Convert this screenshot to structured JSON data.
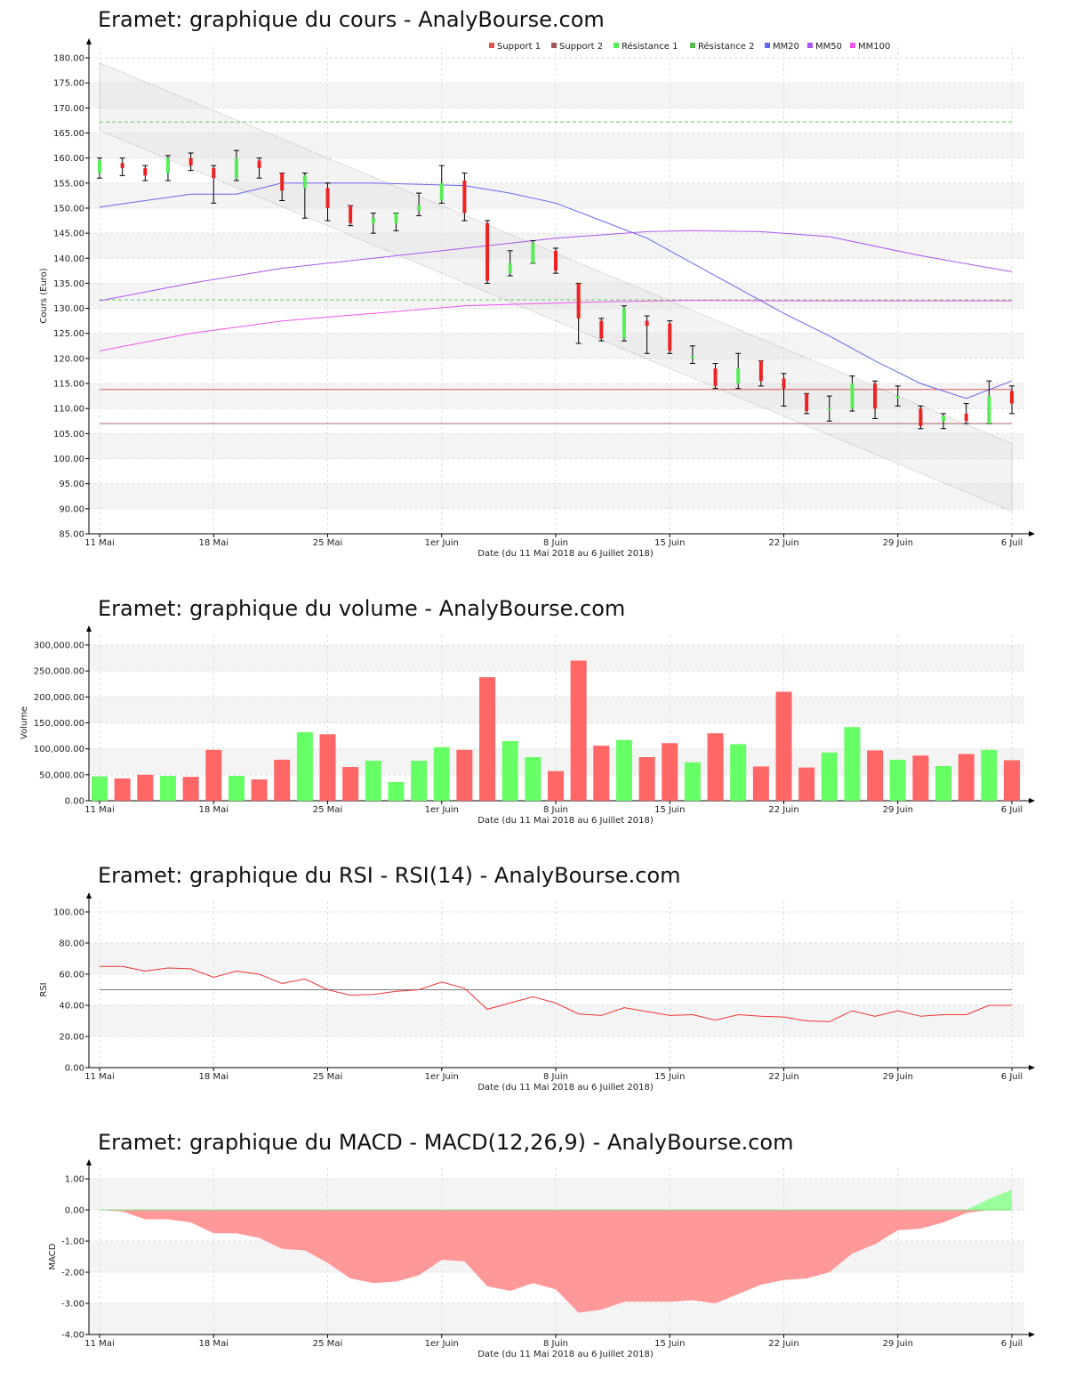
{
  "titles": {
    "price": "Eramet: graphique du cours - AnalyBourse.com",
    "volume": "Eramet: graphique du volume - AnalyBourse.com",
    "rsi": "Eramet: graphique du RSI - RSI(14) - AnalyBourse.com",
    "macd": "Eramet: graphique du MACD - MACD(12,26,9) - AnalyBourse.com"
  },
  "x_axis_label": "Date (du 11 Mai 2018 au 6 Juillet 2018)",
  "x_ticks": [
    "11 Mai",
    "18 Mai",
    "25 Mai",
    "1er Juin",
    "8 Juin",
    "15 Juin",
    "22 Juin",
    "29 Juin",
    "6 Juil"
  ],
  "x_tick_index": [
    0,
    5,
    10,
    15,
    20,
    25,
    30,
    35,
    40
  ],
  "colors": {
    "up": "#55ee55",
    "down": "#ee2222",
    "volume_up": "#66ff66",
    "volume_down": "#ff6666",
    "support": "#dd5555",
    "resistance": "#66cc66",
    "mm20": "#6666ee",
    "mm50": "#aa55ee",
    "mm100": "#ee55ee",
    "macd_neg": "#ff9999",
    "macd_pos": "#99ff99"
  },
  "chart_data": [
    {
      "type": "candlestick",
      "title": "Eramet: graphique du cours - AnalyBourse.com",
      "ylabel": "Cours (Euro)",
      "xlabel": "Date (du 11 Mai 2018 au 6 Juillet 2018)",
      "ylim": [
        85,
        180
      ],
      "y_ticks": [
        "85.00",
        "90.00",
        "95.00",
        "100.00",
        "105.00",
        "110.00",
        "115.00",
        "120.00",
        "125.00",
        "130.00",
        "135.00",
        "140.00",
        "145.00",
        "150.00",
        "155.00",
        "160.00",
        "165.00",
        "170.00",
        "175.00",
        "180.00"
      ],
      "legend": [
        "Support 1",
        "Support 2",
        "Résistance 1",
        "Résistance 2",
        "MM20",
        "MM50",
        "MM100"
      ],
      "legend_position": "top-right",
      "candles": [
        {
          "o": 157,
          "h": 160,
          "l": 156,
          "c": 159.5
        },
        {
          "o": 159,
          "h": 160,
          "l": 156.5,
          "c": 158
        },
        {
          "o": 158,
          "h": 158.5,
          "l": 155.5,
          "c": 156.5
        },
        {
          "o": 157,
          "h": 160.5,
          "l": 155.5,
          "c": 160
        },
        {
          "o": 160,
          "h": 161,
          "l": 157.5,
          "c": 158.5
        },
        {
          "o": 158,
          "h": 158.5,
          "l": 151,
          "c": 156
        },
        {
          "o": 156,
          "h": 161.5,
          "l": 155.5,
          "c": 160
        },
        {
          "o": 159.5,
          "h": 160,
          "l": 156,
          "c": 158
        },
        {
          "o": 157,
          "h": 157,
          "l": 151.5,
          "c": 153.5
        },
        {
          "o": 154,
          "h": 157,
          "l": 148,
          "c": 156.5
        },
        {
          "o": 154,
          "h": 155,
          "l": 147.5,
          "c": 150
        },
        {
          "o": 150.5,
          "h": 150.5,
          "l": 146.5,
          "c": 147
        },
        {
          "o": 147,
          "h": 149,
          "l": 145,
          "c": 148
        },
        {
          "o": 147,
          "h": 149,
          "l": 145.5,
          "c": 149
        },
        {
          "o": 149.5,
          "h": 153,
          "l": 148.5,
          "c": 150.5
        },
        {
          "o": 151.5,
          "h": 158.5,
          "l": 151,
          "c": 155
        },
        {
          "o": 155.5,
          "h": 157,
          "l": 147.5,
          "c": 149
        },
        {
          "o": 147,
          "h": 147.5,
          "l": 135,
          "c": 135.5
        },
        {
          "o": 137,
          "h": 141.5,
          "l": 136.5,
          "c": 139
        },
        {
          "o": 139,
          "h": 143.5,
          "l": 139,
          "c": 143
        },
        {
          "o": 141.5,
          "h": 142,
          "l": 137,
          "c": 137.5
        },
        {
          "o": 135,
          "h": 135,
          "l": 123,
          "c": 128
        },
        {
          "o": 127.5,
          "h": 128,
          "l": 123.5,
          "c": 124
        },
        {
          "o": 124,
          "h": 130.5,
          "l": 123.5,
          "c": 130
        },
        {
          "o": 127.5,
          "h": 128.5,
          "l": 121,
          "c": 126.5
        },
        {
          "o": 127,
          "h": 127.5,
          "l": 121,
          "c": 121.5
        },
        {
          "o": 120,
          "h": 122.5,
          "l": 119,
          "c": 120.5
        },
        {
          "o": 118,
          "h": 119,
          "l": 114,
          "c": 114.5
        },
        {
          "o": 115,
          "h": 121,
          "l": 114,
          "c": 118
        },
        {
          "o": 119.5,
          "h": 119.5,
          "l": 114.5,
          "c": 115.5
        },
        {
          "o": 116,
          "h": 117,
          "l": 110.5,
          "c": 114
        },
        {
          "o": 113,
          "h": 113,
          "l": 109,
          "c": 109.5
        },
        {
          "o": 110,
          "h": 112.5,
          "l": 107.5,
          "c": 110
        },
        {
          "o": 110,
          "h": 116.5,
          "l": 109.5,
          "c": 115
        },
        {
          "o": 115,
          "h": 115.5,
          "l": 108,
          "c": 110
        },
        {
          "o": 112,
          "h": 114.5,
          "l": 110.5,
          "c": 112.5
        },
        {
          "o": 110,
          "h": 110.5,
          "l": 106,
          "c": 106.5
        },
        {
          "o": 107.5,
          "h": 109,
          "l": 106,
          "c": 108.5
        },
        {
          "o": 109,
          "h": 111,
          "l": 107,
          "c": 107.5
        },
        {
          "o": 107,
          "h": 115.5,
          "l": 107,
          "c": 112.5
        },
        {
          "o": 113.5,
          "h": 114.5,
          "l": 109,
          "c": 111
        }
      ],
      "support1": 113.8,
      "support2": 107,
      "resistance1": 131.7,
      "resistance2": 167.2,
      "series": [
        {
          "name": "MM20",
          "points": [
            [
              0,
              150.2
            ],
            [
              4,
              152.8
            ],
            [
              6,
              152.8
            ],
            [
              8,
              155
            ],
            [
              12,
              155
            ],
            [
              16,
              154.5
            ],
            [
              18,
              153
            ],
            [
              20,
              151
            ],
            [
              22,
              147.5
            ],
            [
              24,
              144
            ],
            [
              26,
              139
            ],
            [
              28,
              134
            ],
            [
              30,
              129
            ],
            [
              32,
              124.5
            ],
            [
              34,
              119.5
            ],
            [
              36,
              115
            ],
            [
              38,
              112
            ],
            [
              40,
              115.5
            ]
          ]
        },
        {
          "name": "MM50",
          "points": [
            [
              0,
              131.5
            ],
            [
              4,
              135
            ],
            [
              8,
              138
            ],
            [
              12,
              140
            ],
            [
              16,
              142
            ],
            [
              20,
              144
            ],
            [
              24,
              145.3
            ],
            [
              26,
              145.5
            ],
            [
              29,
              145.3
            ],
            [
              32,
              144.3
            ],
            [
              36,
              140.5
            ],
            [
              40,
              137.3
            ]
          ]
        },
        {
          "name": "MM100",
          "points": [
            [
              0,
              121.5
            ],
            [
              4,
              125
            ],
            [
              8,
              127.5
            ],
            [
              12,
              129
            ],
            [
              16,
              130.5
            ],
            [
              18,
              130.8
            ],
            [
              22,
              131.3
            ],
            [
              26,
              131.6
            ],
            [
              30,
              131.5
            ],
            [
              40,
              131.5
            ]
          ]
        }
      ],
      "channel": {
        "upper": [
          [
            0,
            179
          ],
          [
            40,
            103
          ]
        ],
        "lower": [
          [
            0,
            165.5
          ],
          [
            40,
            89.5
          ]
        ]
      }
    },
    {
      "type": "bar",
      "title": "Eramet: graphique du volume - AnalyBourse.com",
      "ylabel": "Volume",
      "xlabel": "Date (du 11 Mai 2018 au 6 Juillet 2018)",
      "ylim": [
        0,
        300000
      ],
      "y_ticks": [
        "0.00",
        "50,000.00",
        "100,000.00",
        "150,000.00",
        "200,000.00",
        "250,000.00",
        "300,000.00"
      ],
      "values": [
        47000,
        43000,
        50000,
        48000,
        46000,
        98000,
        48000,
        41000,
        79000,
        132000,
        128000,
        65000,
        77000,
        36000,
        77000,
        103000,
        98000,
        238000,
        115000,
        84000,
        57000,
        270000,
        106000,
        117000,
        84000,
        111000,
        74000,
        130000,
        109000,
        66000,
        210000,
        64000,
        93000,
        142000,
        97000,
        79000,
        87000,
        67000,
        90000,
        98000,
        78000
      ],
      "up": [
        true,
        false,
        false,
        true,
        false,
        false,
        true,
        false,
        false,
        true,
        false,
        false,
        true,
        true,
        true,
        true,
        false,
        false,
        true,
        true,
        false,
        false,
        false,
        true,
        false,
        false,
        true,
        false,
        true,
        false,
        false,
        false,
        true,
        true,
        false,
        true,
        false,
        true,
        false,
        true,
        false
      ]
    },
    {
      "type": "line",
      "title": "Eramet: graphique du RSI - RSI(14) - AnalyBourse.com",
      "ylabel": "RSI",
      "xlabel": "Date (du 11 Mai 2018 au 6 Juillet 2018)",
      "ylim": [
        0,
        100
      ],
      "y_ticks": [
        "0.00",
        "20.00",
        "40.00",
        "60.00",
        "80.00",
        "100.00"
      ],
      "reference": 50,
      "series": [
        {
          "points": [
            [
              0,
              65
            ],
            [
              1,
              65
            ],
            [
              2,
              62
            ],
            [
              3,
              64
            ],
            [
              4,
              63.5
            ],
            [
              5,
              58
            ],
            [
              6,
              62
            ],
            [
              7,
              60
            ],
            [
              8,
              54
            ],
            [
              9,
              57
            ],
            [
              10,
              50
            ],
            [
              11,
              46.5
            ],
            [
              12,
              47
            ],
            [
              13,
              49
            ],
            [
              14,
              50
            ],
            [
              15,
              55
            ],
            [
              16,
              51
            ],
            [
              17,
              37.5
            ],
            [
              18,
              41.5
            ],
            [
              19,
              45.5
            ],
            [
              20,
              41.5
            ],
            [
              21,
              34.5
            ],
            [
              22,
              33.5
            ],
            [
              23,
              38.5
            ],
            [
              24,
              36
            ],
            [
              25,
              33.5
            ],
            [
              26,
              34
            ],
            [
              27,
              30.5
            ],
            [
              28,
              34
            ],
            [
              29,
              33
            ],
            [
              30,
              32.5
            ],
            [
              31,
              30
            ],
            [
              32,
              29.5
            ],
            [
              33,
              36.5
            ],
            [
              34,
              33
            ],
            [
              35,
              36.5
            ],
            [
              36,
              33
            ],
            [
              37,
              34
            ],
            [
              38,
              34
            ],
            [
              39,
              40
            ],
            [
              40,
              40
            ]
          ]
        }
      ]
    },
    {
      "type": "area",
      "title": "Eramet: graphique du MACD - MACD(12,26,9) - AnalyBourse.com",
      "ylabel": "MACD",
      "xlabel": "Date (du 11 Mai 2018 au 6 Juillet 2018)",
      "ylim": [
        -4,
        1
      ],
      "y_ticks": [
        "-4.00",
        "-3.00",
        "-2.00",
        "-1.00",
        "0.00",
        "1.00"
      ],
      "series": [
        {
          "points": [
            [
              0,
              0
            ],
            [
              1,
              -0.05
            ],
            [
              2,
              -0.3
            ],
            [
              3,
              -0.3
            ],
            [
              4,
              -0.4
            ],
            [
              5,
              -0.75
            ],
            [
              6,
              -0.75
            ],
            [
              7,
              -0.9
            ],
            [
              8,
              -1.25
            ],
            [
              9,
              -1.3
            ],
            [
              10,
              -1.7
            ],
            [
              11,
              -2.2
            ],
            [
              12,
              -2.35
            ],
            [
              13,
              -2.3
            ],
            [
              14,
              -2.1
            ],
            [
              15,
              -1.6
            ],
            [
              16,
              -1.65
            ],
            [
              17,
              -2.45
            ],
            [
              18,
              -2.6
            ],
            [
              19,
              -2.35
            ],
            [
              20,
              -2.55
            ],
            [
              21,
              -3.3
            ],
            [
              22,
              -3.2
            ],
            [
              23,
              -2.95
            ],
            [
              24,
              -2.95
            ],
            [
              25,
              -2.95
            ],
            [
              26,
              -2.9
            ],
            [
              27,
              -3.0
            ],
            [
              28,
              -2.7
            ],
            [
              29,
              -2.4
            ],
            [
              30,
              -2.25
            ],
            [
              31,
              -2.2
            ],
            [
              32,
              -2.0
            ],
            [
              33,
              -1.4
            ],
            [
              34,
              -1.1
            ],
            [
              35,
              -0.65
            ],
            [
              36,
              -0.6
            ],
            [
              37,
              -0.4
            ],
            [
              38,
              -0.1
            ],
            [
              39,
              0.35
            ],
            [
              40,
              0.65
            ]
          ]
        }
      ]
    }
  ]
}
